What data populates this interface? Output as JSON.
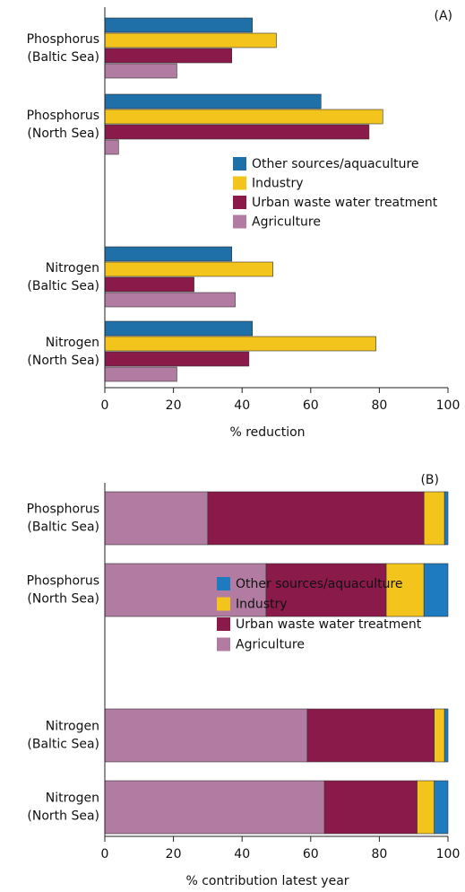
{
  "chart_data": [
    {
      "type": "bar",
      "orientation": "horizontal",
      "title": "(A)",
      "xlabel": "% reduction",
      "categories": [
        [
          "Phosphorus",
          "(Baltic Sea)"
        ],
        [
          "Phosphorus",
          "(North Sea)"
        ],
        [
          "Nitrogen",
          "(Baltic Sea)"
        ],
        [
          "Nitrogen",
          "(North Sea)"
        ]
      ],
      "series": [
        {
          "name": "Other sources/aquaculture",
          "color": "#1f6fa8",
          "values": [
            43,
            63,
            37,
            43
          ]
        },
        {
          "name": "Industry",
          "color": "#f3c41c",
          "values": [
            50,
            81,
            49,
            79
          ]
        },
        {
          "name": "Urban waste water treatment",
          "color": "#8a1a4a",
          "values": [
            37,
            77,
            26,
            42
          ]
        },
        {
          "name": "Agriculture",
          "color": "#b27ca2",
          "values": [
            21,
            4,
            38,
            21
          ]
        }
      ],
      "xlim": [
        0,
        100
      ],
      "xticks": [
        0,
        20,
        40,
        60,
        80,
        100
      ]
    },
    {
      "type": "stacked_bar",
      "orientation": "horizontal",
      "title": "(B)",
      "xlabel": "% contribution latest year",
      "categories": [
        [
          "Phosphorus",
          "(Baltic Sea)"
        ],
        [
          "Phosphorus",
          "(North Sea)"
        ],
        [
          "Nitrogen",
          "(Baltic Sea)"
        ],
        [
          "Nitrogen",
          "(North Sea)"
        ]
      ],
      "series": [
        {
          "name": "Other sources/aquaculture",
          "color": "#1f7bbf",
          "values": [
            1,
            7,
            1,
            4
          ]
        },
        {
          "name": "Industry",
          "color": "#f3c41c",
          "values": [
            6,
            11,
            3,
            5
          ]
        },
        {
          "name": "Urban waste water treatment",
          "color": "#8a1a4a",
          "values": [
            63,
            35,
            37,
            27
          ]
        },
        {
          "name": "Agriculture",
          "color": "#b27ca2",
          "values": [
            30,
            47,
            59,
            64
          ]
        }
      ],
      "xlim": [
        0,
        100
      ],
      "xticks": [
        0,
        20,
        40,
        60,
        80,
        100
      ]
    }
  ]
}
